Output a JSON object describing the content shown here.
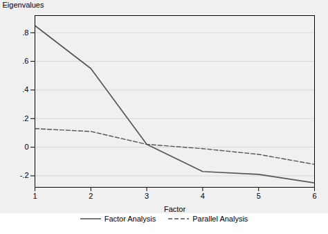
{
  "chart_data": {
    "type": "line",
    "x": [
      1,
      2,
      3,
      4,
      5,
      6
    ],
    "series": [
      {
        "name": "Factor Analysis",
        "color": "#555555",
        "line_style": "solid",
        "values": [
          0.85,
          0.55,
          0.02,
          -0.17,
          -0.19,
          -0.25
        ]
      },
      {
        "name": "Parallel Analysis",
        "color": "#555555",
        "line_style": "dashed",
        "values": [
          0.13,
          0.11,
          0.02,
          -0.01,
          -0.05,
          -0.12
        ]
      }
    ],
    "xlabel": "Factor",
    "ylabel": "Eigenvalues",
    "xlim": [
      1,
      6
    ],
    "ylim": [
      -0.28,
      0.92
    ],
    "xticks": [
      1,
      2,
      3,
      4,
      5,
      6
    ],
    "yticks": [
      {
        "value": -0.2,
        "label": "-.2"
      },
      0,
      {
        "value": 0.2,
        "label": ".2"
      },
      {
        "value": 0.4,
        "label": ".4"
      },
      {
        "value": 0.6,
        "label": ".6"
      },
      {
        "value": 0.8,
        "label": ".8"
      }
    ],
    "grid": true,
    "legend": "bottom"
  }
}
